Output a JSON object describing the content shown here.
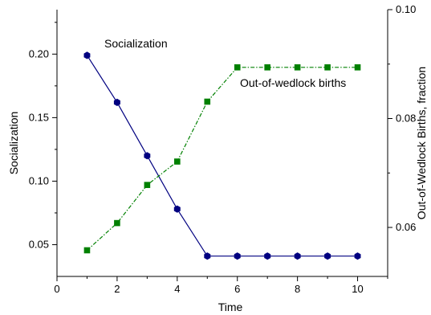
{
  "chart_data": {
    "type": "line",
    "x": [
      1,
      2,
      3,
      4,
      5,
      6,
      7,
      8,
      9,
      10
    ],
    "xlabel": "Time",
    "xlim": [
      0,
      11
    ],
    "xticks": [
      0,
      2,
      4,
      6,
      8,
      10
    ],
    "ylabel_left": "Socialization",
    "ylim_left": [
      0.025,
      0.235
    ],
    "yticks_left": [
      0.05,
      0.1,
      0.15,
      0.2
    ],
    "ytick_labels_left": [
      "0.05",
      "0.10",
      "0.15",
      "0.20"
    ],
    "ylabel_right": "Out-of-Wedlock Births, fraction",
    "ylim_right": [
      0.051,
      0.1
    ],
    "yticks_right": [
      0.06,
      0.08,
      0.1
    ],
    "ytick_labels_right": [
      "0.06",
      "0.08",
      "0.10"
    ],
    "grid": false,
    "series": [
      {
        "name": "Socialization",
        "axis": "left",
        "color": "#000080",
        "marker": "hexagon",
        "line_style": "solid",
        "values": [
          0.199,
          0.162,
          0.12,
          0.078,
          0.041,
          0.041,
          0.041,
          0.041,
          0.041,
          0.041
        ]
      },
      {
        "name": "Out-of-wedlock births",
        "axis": "right",
        "color": "#008000",
        "marker": "square",
        "line_style": "dash-dot",
        "values": [
          0.0558,
          0.0608,
          0.0678,
          0.0721,
          0.0831,
          0.0894,
          0.0894,
          0.0894,
          0.0894,
          0.0894
        ]
      }
    ],
    "annotations": [
      {
        "text": "Socialization",
        "series": "Socialization"
      },
      {
        "text": "Out-of-wedlock births",
        "series": "Out-of-wedlock births"
      }
    ]
  }
}
